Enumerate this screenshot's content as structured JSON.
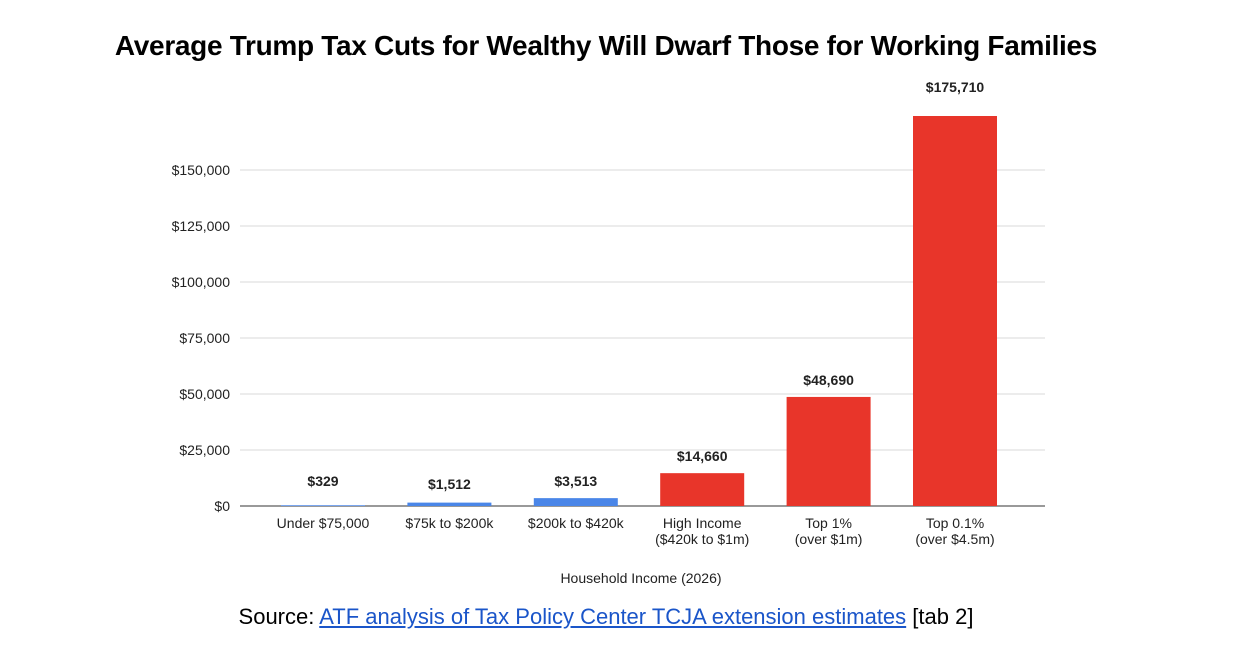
{
  "title": "Average Trump Tax Cuts for Wealthy Will Dwarf Those for Working Families",
  "source": {
    "prefix": "Source: ",
    "link_text": "ATF analysis of Tax Policy Center TCJA extension estimates",
    "suffix": " [tab 2]"
  },
  "colors": {
    "blue": "#4a86e8",
    "red": "#e8352a",
    "grid": "#d9d9d9",
    "link": "#1a55c9"
  },
  "chart_data": {
    "type": "bar",
    "title": "Average Trump Tax Cuts for Wealthy Will Dwarf Those for Working Families",
    "xlabel": "Household Income (2026)",
    "ylabel": "",
    "ylim": [
      0,
      150000
    ],
    "yticks": [
      0,
      25000,
      50000,
      75000,
      100000,
      125000,
      150000
    ],
    "ytick_labels": [
      "$0",
      "$25,000",
      "$50,000",
      "$75,000",
      "$100,000",
      "$125,000",
      "$150,000"
    ],
    "grid": true,
    "categories": [
      [
        "Under $75,000"
      ],
      [
        "$75k to $200k"
      ],
      [
        "$200k to $420k"
      ],
      [
        "High Income",
        "($420k to $1m)"
      ],
      [
        "Top 1%",
        "(over $1m)"
      ],
      [
        "Top 0.1%",
        "(over $4.5m)"
      ]
    ],
    "values": [
      329,
      1512,
      3513,
      14660,
      48690,
      175710
    ],
    "data_labels": [
      "$329",
      "$1,512",
      "$3,513",
      "$14,660",
      "$48,690",
      "$175,710"
    ],
    "bar_colors": [
      "#4a86e8",
      "#4a86e8",
      "#4a86e8",
      "#e8352a",
      "#e8352a",
      "#e8352a"
    ]
  }
}
